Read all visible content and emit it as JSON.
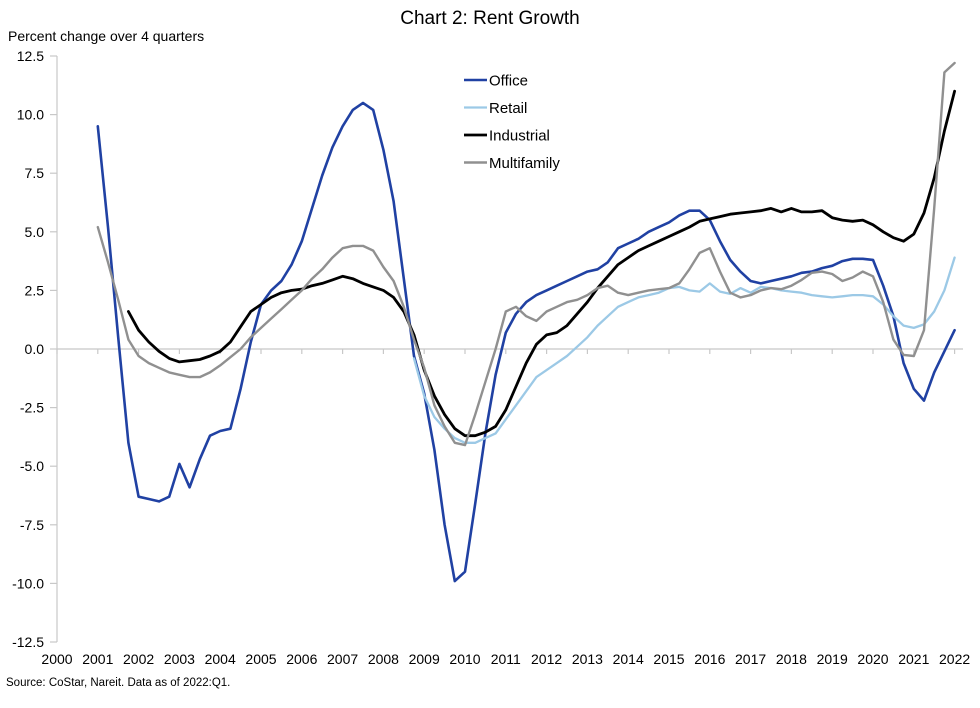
{
  "chart_data": {
    "type": "line",
    "title": "Chart 2: Rent Growth",
    "ylabel": "Percent change over 4 quarters",
    "source_note": "Source: CoStar, Nareit. Data as of 2022:Q1.",
    "ylim": [
      -12.5,
      12.5
    ],
    "yticks": [
      12.5,
      10.0,
      7.5,
      5.0,
      2.5,
      0.0,
      -2.5,
      -5.0,
      -7.5,
      -10.0,
      -12.5
    ],
    "xticks": [
      2000,
      2001,
      2002,
      2003,
      2004,
      2005,
      2006,
      2007,
      2008,
      2009,
      2010,
      2011,
      2012,
      2013,
      2014,
      2015,
      2016,
      2017,
      2018,
      2019,
      2020,
      2021,
      2022
    ],
    "x_unit": "year, quarterly data",
    "x_step": 0.25,
    "grid": "zero-line-only",
    "legend_position": "upper-center",
    "axis_color": "#c8c8c8",
    "series": [
      {
        "name": "Office",
        "color": "#2041a3",
        "width": 2.6,
        "start": 2001.0,
        "values": [
          9.5,
          5.2,
          0.5,
          -4.0,
          -6.3,
          -6.4,
          -6.5,
          -6.3,
          -4.9,
          -5.9,
          -4.7,
          -3.7,
          -3.5,
          -3.4,
          -1.7,
          0.3,
          1.9,
          2.5,
          2.9,
          3.6,
          4.6,
          6.0,
          7.4,
          8.6,
          9.5,
          10.2,
          10.5,
          10.2,
          8.5,
          6.3,
          3.0,
          -0.3,
          -1.9,
          -4.3,
          -7.5,
          -9.9,
          -9.5,
          -6.6,
          -3.6,
          -1.1,
          0.7,
          1.5,
          2.0,
          2.3,
          2.5,
          2.7,
          2.9,
          3.1,
          3.3,
          3.4,
          3.7,
          4.3,
          4.5,
          4.7,
          5.0,
          5.2,
          5.4,
          5.7,
          5.9,
          5.9,
          5.5,
          4.6,
          3.8,
          3.3,
          2.9,
          2.8,
          2.9,
          3.0,
          3.1,
          3.25,
          3.3,
          3.45,
          3.55,
          3.75,
          3.85,
          3.85,
          3.8,
          2.7,
          1.4,
          -0.6,
          -1.7,
          -2.2,
          -1.0,
          -0.1,
          0.8
        ]
      },
      {
        "name": "Retail",
        "color": "#9cc9e6",
        "width": 2.3,
        "start": 2008.75,
        "values": [
          -0.4,
          -2.0,
          -2.9,
          -3.4,
          -3.8,
          -4.0,
          -4.0,
          -3.8,
          -3.6,
          -3.0,
          -2.4,
          -1.8,
          -1.2,
          -0.9,
          -0.6,
          -0.3,
          0.1,
          0.5,
          1.0,
          1.4,
          1.8,
          2.0,
          2.2,
          2.3,
          2.4,
          2.6,
          2.65,
          2.5,
          2.45,
          2.8,
          2.45,
          2.35,
          2.6,
          2.4,
          2.65,
          2.6,
          2.5,
          2.45,
          2.4,
          2.3,
          2.25,
          2.2,
          2.25,
          2.3,
          2.3,
          2.25,
          1.9,
          1.4,
          1.0,
          0.9,
          1.05,
          1.6,
          2.5,
          3.9
        ]
      },
      {
        "name": "Industrial",
        "color": "#000000",
        "width": 2.8,
        "start": 2001.75,
        "values": [
          1.6,
          0.8,
          0.3,
          -0.1,
          -0.4,
          -0.55,
          -0.5,
          -0.45,
          -0.3,
          -0.1,
          0.3,
          0.95,
          1.6,
          1.9,
          2.2,
          2.4,
          2.5,
          2.55,
          2.7,
          2.8,
          2.95,
          3.1,
          3.0,
          2.8,
          2.65,
          2.5,
          2.2,
          1.6,
          0.6,
          -0.9,
          -2.0,
          -2.8,
          -3.4,
          -3.7,
          -3.7,
          -3.55,
          -3.3,
          -2.6,
          -1.6,
          -0.6,
          0.2,
          0.6,
          0.7,
          1.0,
          1.5,
          2.0,
          2.6,
          3.1,
          3.6,
          3.9,
          4.2,
          4.4,
          4.6,
          4.8,
          5.0,
          5.2,
          5.45,
          5.55,
          5.65,
          5.75,
          5.8,
          5.85,
          5.9,
          6.0,
          5.85,
          6.0,
          5.85,
          5.85,
          5.9,
          5.6,
          5.5,
          5.45,
          5.5,
          5.3,
          5.0,
          4.75,
          4.6,
          4.9,
          5.8,
          7.3,
          9.3,
          11.0
        ]
      },
      {
        "name": "Multifamily",
        "color": "#909090",
        "width": 2.4,
        "start": 2001.0,
        "values": [
          5.2,
          3.7,
          2.1,
          0.4,
          -0.3,
          -0.6,
          -0.8,
          -1.0,
          -1.1,
          -1.2,
          -1.2,
          -1.0,
          -0.7,
          -0.35,
          0.0,
          0.5,
          0.9,
          1.3,
          1.7,
          2.1,
          2.5,
          3.0,
          3.4,
          3.9,
          4.3,
          4.4,
          4.4,
          4.2,
          3.5,
          2.9,
          1.8,
          0.4,
          -0.8,
          -2.4,
          -3.3,
          -4.0,
          -4.1,
          -2.8,
          -1.4,
          0.0,
          1.6,
          1.8,
          1.4,
          1.2,
          1.6,
          1.8,
          2.0,
          2.1,
          2.3,
          2.6,
          2.7,
          2.4,
          2.3,
          2.4,
          2.5,
          2.55,
          2.6,
          2.8,
          3.4,
          4.1,
          4.3,
          3.3,
          2.4,
          2.2,
          2.3,
          2.5,
          2.6,
          2.55,
          2.7,
          2.95,
          3.25,
          3.3,
          3.2,
          2.9,
          3.05,
          3.3,
          3.1,
          2.0,
          0.4,
          -0.25,
          -0.3,
          0.8,
          6.0,
          11.8,
          12.2
        ]
      }
    ]
  }
}
